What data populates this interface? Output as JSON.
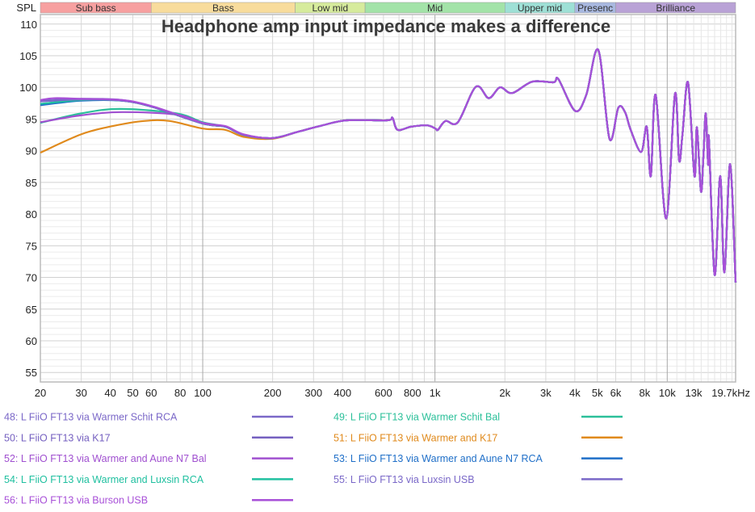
{
  "chart_data": {
    "type": "line",
    "title": "Headphone amp input impedance makes a difference",
    "ylabel": "SPL",
    "x_unit": "Hz",
    "x_scale": "log",
    "xlim": [
      20,
      19700
    ],
    "ylim": [
      53.5,
      111.5
    ],
    "grid": true,
    "legend_placement": "bottom",
    "y_ticks": [
      110,
      105,
      100,
      95,
      90,
      85,
      80,
      75,
      70,
      65,
      60,
      55
    ],
    "x_ticks": [
      {
        "value": 20,
        "label": "20"
      },
      {
        "value": 30,
        "label": "30"
      },
      {
        "value": 40,
        "label": "40"
      },
      {
        "value": 50,
        "label": "50"
      },
      {
        "value": 60,
        "label": "60"
      },
      {
        "value": 80,
        "label": "80"
      },
      {
        "value": 100,
        "label": "100"
      },
      {
        "value": 200,
        "label": "200"
      },
      {
        "value": 300,
        "label": "300"
      },
      {
        "value": 400,
        "label": "400"
      },
      {
        "value": 600,
        "label": "600"
      },
      {
        "value": 800,
        "label": "800"
      },
      {
        "value": 1000,
        "label": "1k"
      },
      {
        "value": 2000,
        "label": "2k"
      },
      {
        "value": 3000,
        "label": "3k"
      },
      {
        "value": 4000,
        "label": "4k"
      },
      {
        "value": 5000,
        "label": "5k"
      },
      {
        "value": 6000,
        "label": "6k"
      },
      {
        "value": 8000,
        "label": "8k"
      },
      {
        "value": 10000,
        "label": "10k"
      },
      {
        "value": 13000,
        "label": "13k",
        "color": "#aaaaaa"
      },
      {
        "value": 19700,
        "label": "19.7kHz"
      }
    ],
    "bands": [
      {
        "label": "Sub bass",
        "from": 20,
        "to": 60,
        "color": "#f7a0a0"
      },
      {
        "label": "Bass",
        "from": 60,
        "to": 250,
        "color": "#f8dc9c"
      },
      {
        "label": "Low mid",
        "from": 250,
        "to": 500,
        "color": "#d6eb9c"
      },
      {
        "label": "Mid",
        "from": 500,
        "to": 2000,
        "color": "#a3e3a8"
      },
      {
        "label": "Upper mid",
        "from": 2000,
        "to": 4000,
        "color": "#9ee0d6"
      },
      {
        "label": "Presenc",
        "from": 4000,
        "to": 6000,
        "color": "#a8b8e0"
      },
      {
        "label": "Brilliance",
        "from": 6000,
        "to": 19700,
        "color": "#b9a2d6"
      }
    ],
    "common_points": [
      [
        257,
        93.0
      ],
      [
        327,
        94.0
      ],
      [
        417,
        94.8
      ],
      [
        622,
        94.8
      ],
      [
        656,
        95.2
      ],
      [
        690,
        93.3
      ],
      [
        790,
        93.8
      ],
      [
        927,
        94.0
      ],
      [
        1005,
        93.5
      ],
      [
        1030,
        93.3
      ],
      [
        1110,
        94.7
      ],
      [
        1255,
        94.5
      ],
      [
        1500,
        100.1
      ],
      [
        1705,
        98.3
      ],
      [
        1906,
        100.0
      ],
      [
        2150,
        99.1
      ],
      [
        2620,
        100.9
      ],
      [
        3240,
        100.8
      ],
      [
        3400,
        101.3
      ],
      [
        4010,
        96.3
      ],
      [
        4480,
        98.8
      ],
      [
        5050,
        105.9
      ],
      [
        5640,
        91.9
      ],
      [
        6160,
        96.8
      ],
      [
        6580,
        96.1
      ],
      [
        6960,
        93.3
      ],
      [
        7720,
        89.8
      ],
      [
        8160,
        93.8
      ],
      [
        8500,
        86.0
      ],
      [
        8920,
        98.8
      ],
      [
        9890,
        79.3
      ],
      [
        10800,
        99.0
      ],
      [
        11250,
        88.5
      ],
      [
        11620,
        92.4
      ],
      [
        12290,
        100.8
      ],
      [
        13100,
        86.0
      ],
      [
        13420,
        93.7
      ],
      [
        13970,
        83.6
      ],
      [
        14310,
        89.0
      ],
      [
        14650,
        95.9
      ],
      [
        15000,
        87.8
      ],
      [
        15120,
        91.8
      ],
      [
        16000,
        70.4
      ],
      [
        16900,
        86.0
      ],
      [
        17630,
        70.8
      ],
      [
        18650,
        87.9
      ],
      [
        19700,
        69.2
      ]
    ],
    "series": [
      {
        "name": "48: L FiiO FT13 via Warmer Schit RCA",
        "color": "#7b68c8",
        "points": [
          [
            20,
            97.9
          ],
          [
            30,
            98.2
          ],
          [
            45,
            98.0
          ],
          [
            61,
            96.9
          ],
          [
            100,
            94.3
          ],
          [
            125,
            93.8
          ],
          [
            150,
            92.5
          ],
          [
            200,
            92.0
          ]
        ]
      },
      {
        "name": "49: L FiiO FT13 via Warmer Schit Bal",
        "color": "#2cc09a",
        "points": [
          [
            20,
            94.4
          ],
          [
            30,
            95.9
          ],
          [
            44,
            96.6
          ],
          [
            77,
            95.9
          ],
          [
            100,
            94.5
          ],
          [
            125,
            93.8
          ],
          [
            150,
            92.5
          ],
          [
            200,
            92.0
          ]
        ]
      },
      {
        "name": "50: L FiiO FT13 via K17",
        "color": "#7560c0",
        "points": [
          [
            20,
            97.8
          ],
          [
            30,
            98.1
          ],
          [
            45,
            97.9
          ],
          [
            61,
            96.9
          ],
          [
            100,
            94.3
          ],
          [
            125,
            93.8
          ],
          [
            150,
            92.5
          ],
          [
            200,
            92.0
          ]
        ]
      },
      {
        "name": "51: L FiiO FT13 via Warmer and K17",
        "color": "#e08a1c",
        "points": [
          [
            20,
            89.7
          ],
          [
            30,
            92.6
          ],
          [
            41,
            93.9
          ],
          [
            56,
            94.7
          ],
          [
            72,
            94.7
          ],
          [
            100,
            93.5
          ],
          [
            125,
            93.3
          ],
          [
            150,
            92.2
          ],
          [
            200,
            91.9
          ]
        ]
      },
      {
        "name": "52: L FiiO FT13 via Warmer and Aune N7 Bal",
        "color": "#a050d0",
        "points": [
          [
            20,
            94.5
          ],
          [
            30,
            95.6
          ],
          [
            45,
            96.1
          ],
          [
            77,
            95.7
          ],
          [
            100,
            94.4
          ],
          [
            125,
            93.8
          ],
          [
            150,
            92.5
          ],
          [
            200,
            92.0
          ]
        ]
      },
      {
        "name": "53: L FiiO FT13 via Warmer and Aune N7 RCA",
        "color": "#1f6fc8",
        "points": [
          [
            20,
            97.2
          ],
          [
            30,
            97.9
          ],
          [
            45,
            97.9
          ],
          [
            61,
            96.9
          ],
          [
            100,
            94.3
          ],
          [
            125,
            93.8
          ],
          [
            150,
            92.5
          ],
          [
            200,
            92.0
          ]
        ]
      },
      {
        "name": "54: L FiiO FT13 via Warmer and Luxsin RCA",
        "color": "#20c0a0",
        "points": [
          [
            20,
            97.4
          ],
          [
            30,
            98.0
          ],
          [
            45,
            97.9
          ],
          [
            61,
            96.9
          ],
          [
            100,
            94.3
          ],
          [
            125,
            93.8
          ],
          [
            150,
            92.5
          ],
          [
            200,
            92.0
          ]
        ]
      },
      {
        "name": "55: L FiiO FT13 via Luxsin USB",
        "color": "#7a68c8",
        "points": [
          [
            20,
            97.8
          ],
          [
            30,
            98.1
          ],
          [
            45,
            97.9
          ],
          [
            61,
            96.9
          ],
          [
            100,
            94.3
          ],
          [
            125,
            93.8
          ],
          [
            150,
            92.5
          ],
          [
            200,
            92.0
          ]
        ]
      },
      {
        "name": "56: L FiiO FT13 via Burson USB",
        "color": "#a850d8",
        "points": [
          [
            20,
            98.0
          ],
          [
            23,
            98.3
          ],
          [
            30,
            98.2
          ],
          [
            45,
            98.0
          ],
          [
            61,
            97.0
          ],
          [
            100,
            94.4
          ],
          [
            125,
            93.9
          ],
          [
            150,
            92.6
          ],
          [
            200,
            92.0
          ]
        ]
      }
    ]
  }
}
